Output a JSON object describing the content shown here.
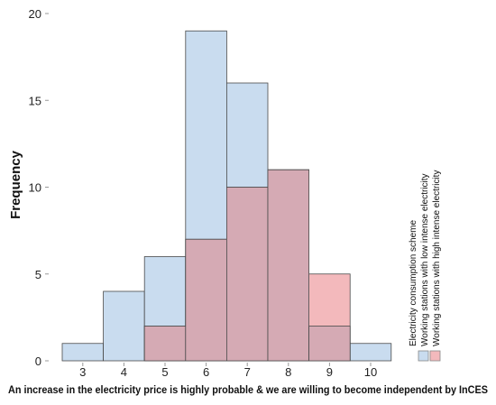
{
  "chart_data": {
    "type": "bar",
    "title": "",
    "xlabel": "An increase in the electricity price is highly probable & we are willing to become independent by InCES",
    "ylabel": "Frequency",
    "categories": [
      "3",
      "4",
      "5",
      "6",
      "7",
      "8",
      "9",
      "10"
    ],
    "series": [
      {
        "name": "Working stations with low intense electricity",
        "values": [
          1,
          4,
          6,
          19,
          16,
          11,
          2,
          1
        ],
        "color": "#c9dcef"
      },
      {
        "name": "Working stations with high intense electricity",
        "values": [
          0,
          0,
          2,
          7,
          10,
          11,
          5,
          0
        ],
        "color": "#f3b9bc"
      }
    ],
    "overlap_color": "#d5aab4",
    "yticks": [
      0,
      5,
      10,
      15,
      20
    ],
    "ylim": [
      0,
      20
    ],
    "grid": false,
    "legend": {
      "title": "Electricity consumption scheme",
      "placement": "right"
    }
  }
}
